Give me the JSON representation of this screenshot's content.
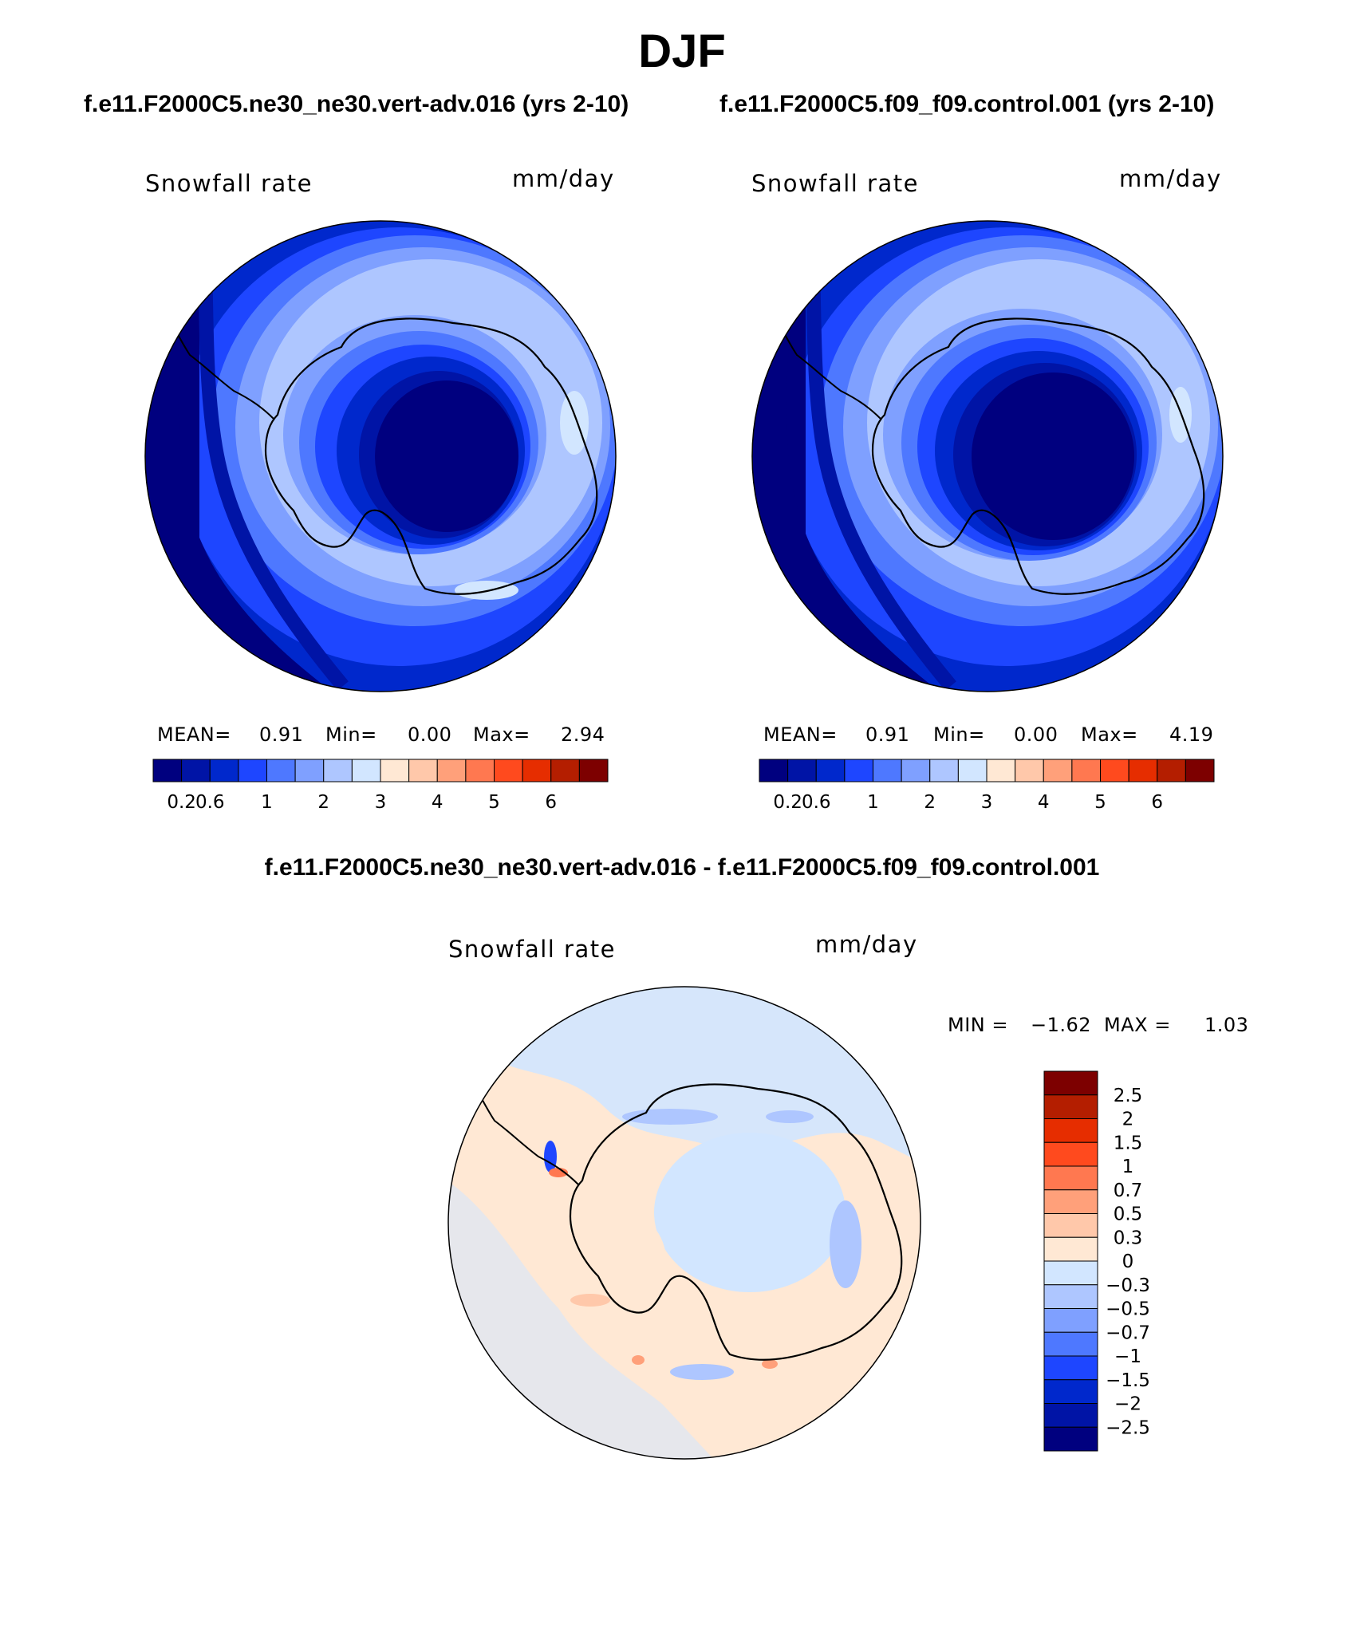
{
  "figure": {
    "title": "DJF"
  },
  "panels": [
    {
      "case_title": "f.e11.F2000C5.ne30_ne30.vert-adv.016 (yrs 2-10)",
      "variable": "Snowfall rate",
      "units": "mm/day",
      "mean_label": "MEAN=",
      "mean_value": "0.91",
      "min_label": "Min=",
      "min_value": "0.00",
      "max_label": "Max=",
      "max_value": "2.94"
    },
    {
      "case_title": "f.e11.F2000C5.f09_f09.control.001 (yrs 2-10)",
      "variable": "Snowfall rate",
      "units": "mm/day",
      "mean_label": "MEAN=",
      "mean_value": "0.91",
      "min_label": "Min=",
      "min_value": "0.00",
      "max_label": "Max=",
      "max_value": "4.19"
    }
  ],
  "diff_panel": {
    "title": "f.e11.F2000C5.ne30_ne30.vert-adv.016 - f.e11.F2000C5.f09_f09.control.001",
    "variable": "Snowfall rate",
    "units": "mm/day",
    "min_label": "MIN =",
    "min_value": "−1.62",
    "max_label": "MAX =",
    "max_value": "1.03"
  },
  "colorbar_main": {
    "colors": [
      "#00007f",
      "#0014a6",
      "#0028cc",
      "#1e46ff",
      "#4e78ff",
      "#7fa0ff",
      "#aec6ff",
      "#d2e6ff",
      "#ffe8d4",
      "#ffc8aa",
      "#ffa07a",
      "#ff7850",
      "#ff4a1e",
      "#e62d00",
      "#b41e00",
      "#7d0000"
    ],
    "tick_labels": [
      "0.2",
      "0.6",
      "1",
      "2",
      "3",
      "4",
      "5",
      "6"
    ]
  },
  "colorbar_diff": {
    "colors_top_to_bottom": [
      "#7d0000",
      "#b41e00",
      "#e62d00",
      "#ff4a1e",
      "#ff7850",
      "#ffa07a",
      "#ffc8aa",
      "#ffe8d4",
      "#d2e6ff",
      "#aec6ff",
      "#7fa0ff",
      "#4e78ff",
      "#1e46ff",
      "#0028cc",
      "#0014a6",
      "#00007f"
    ],
    "tick_labels": [
      "2.5",
      "2",
      "1.5",
      "1",
      "0.7",
      "0.5",
      "0.3",
      "0",
      "−0.3",
      "−0.5",
      "−0.7",
      "−1",
      "−1.5",
      "−2",
      "−2.5"
    ]
  },
  "colors": {
    "deep_blue": "#00007f",
    "mid_blue": "#1e46ff",
    "light_blue": "#aec6ff",
    "pale_blue": "#d2e6ff",
    "pale_peach": "#ffe8d4",
    "coast": "#000000"
  }
}
